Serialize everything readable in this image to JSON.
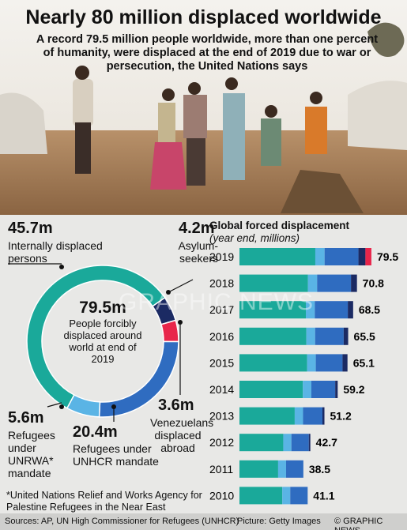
{
  "header": {
    "title": "Nearly 80 million displaced worldwide",
    "subtitle": "A record 79.5 million people worldwide, more than one percent of humanity, were displaced at the end of 2019 due to war or persecution, the United Nations says"
  },
  "chart_data": [
    {
      "type": "pie",
      "donut": true,
      "center_label": "79.5m",
      "center_text": "People forcibly displaced around world at end of 2019",
      "categories": [
        "Internally displaced persons",
        "Asylum-seekers",
        "Venezuelans displaced abroad",
        "Refugees under UNHCR mandate",
        "Refugees under UNRWA* mandate"
      ],
      "values": [
        45.7,
        4.2,
        3.6,
        20.4,
        5.6
      ],
      "value_labels": [
        "45.7m",
        "4.2m",
        "3.6m",
        "20.4m",
        "5.6m"
      ],
      "colors": [
        "#1aa99a",
        "#1b2a63",
        "#e8254a",
        "#2f6cc0",
        "#5ab4e5"
      ]
    },
    {
      "type": "barh",
      "stacked": true,
      "title": "Global forced displacement",
      "subtitle": "(year end, millions)",
      "categories": [
        "2019",
        "2018",
        "2017",
        "2016",
        "2015",
        "2014",
        "2013",
        "2012",
        "2011",
        "2010"
      ],
      "series": [
        {
          "color": "#1aa99a",
          "values": [
            45.7,
            41.3,
            40.0,
            40.3,
            40.8,
            38.2,
            33.3,
            26.4,
            23.3,
            25.8
          ]
        },
        {
          "color": "#5ab4e5",
          "values": [
            5.6,
            5.5,
            5.4,
            5.3,
            5.2,
            5.1,
            5.0,
            4.9,
            4.8,
            4.8
          ]
        },
        {
          "color": "#2f6cc0",
          "values": [
            20.4,
            20.4,
            19.9,
            17.2,
            16.1,
            14.4,
            11.7,
            10.5,
            10.4,
            10.5
          ]
        },
        {
          "color": "#1b2a63",
          "values": [
            4.2,
            3.6,
            3.2,
            2.7,
            3.0,
            1.5,
            1.2,
            0.9,
            0,
            0
          ]
        },
        {
          "color": "#e8254a",
          "values": [
            3.6,
            0,
            0,
            0,
            0,
            0,
            0,
            0,
            0,
            0
          ]
        }
      ],
      "totals": [
        79.5,
        70.8,
        68.5,
        65.5,
        65.1,
        59.2,
        51.2,
        42.7,
        38.5,
        41.1
      ],
      "xlim": [
        0,
        80
      ]
    }
  ],
  "footnote": "*United Nations Relief and Works Agency for Palestine Refugees in the Near East",
  "footer": {
    "sources": "Sources: AP, UN High Commissioner for Refugees (UNHCR)",
    "picture": "Picture: Getty Images",
    "copyright": "© GRAPHIC NEWS"
  },
  "watermark": "GRAPHIC NEWS"
}
